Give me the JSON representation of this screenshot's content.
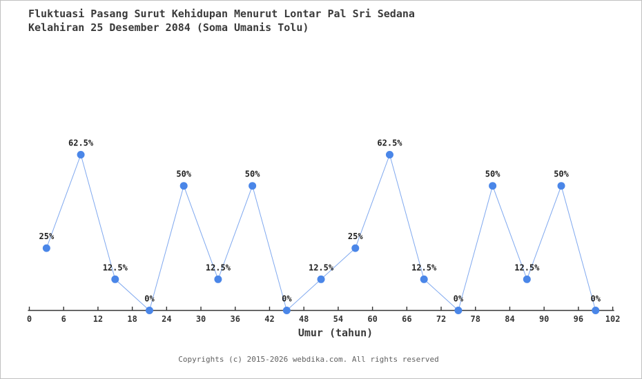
{
  "title": {
    "line1": "Fluktuasi Pasang Surut Kehidupan Menurut Lontar Pal Sri Sedana",
    "line2": "Kelahiran 25 Desember 2084 (Soma Umanis Tolu)"
  },
  "chart_data": {
    "type": "line",
    "x": [
      3,
      9,
      15,
      21,
      27,
      33,
      39,
      45,
      51,
      57,
      63,
      69,
      75,
      81,
      87,
      93,
      99
    ],
    "values": [
      25,
      62.5,
      12.5,
      0,
      50,
      12.5,
      50,
      0,
      12.5,
      25,
      62.5,
      12.5,
      0,
      50,
      12.5,
      50,
      0
    ],
    "point_labels": [
      "25%",
      "62.5%",
      "12.5%",
      "0%",
      "50%",
      "12.5%",
      "50%",
      "0%",
      "12.5%",
      "25%",
      "62.5%",
      "12.5%",
      "0%",
      "50%",
      "12.5%",
      "50%",
      "0%"
    ],
    "x_ticks": [
      0,
      6,
      12,
      18,
      24,
      30,
      36,
      42,
      48,
      54,
      60,
      66,
      72,
      78,
      84,
      90,
      96,
      102
    ],
    "xlabel": "Umur (tahun)",
    "ylabel": "",
    "xlim": [
      0,
      102
    ],
    "ylim": [
      0,
      75
    ],
    "grid": false,
    "legend": "none"
  },
  "colors": {
    "marker": "#4a86e8",
    "line": "#7fa8ef",
    "axis": "#333333",
    "tick_label": "#333333",
    "point_label": "#1f1f1f",
    "title": "#3a3a3a",
    "footer": "#5f5f5f",
    "background": "#ffffff",
    "border": "#c0c0c0"
  },
  "footer": {
    "text": "Copyrights (c) 2015-2026 webdika.com. All rights reserved"
  }
}
